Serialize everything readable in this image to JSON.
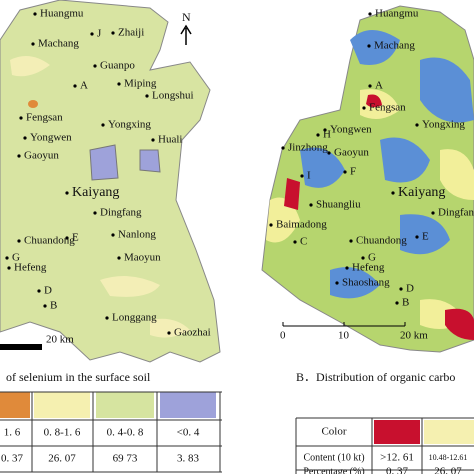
{
  "left_map": {
    "caption": "of selenium in the surface soil",
    "north": "N",
    "scale": "20 km",
    "labels": [
      "Huangmu",
      "J",
      "Zhaiji",
      "Machang",
      "Guanpo",
      "Miping",
      "A",
      "Longshui",
      "Fengsan",
      "Yongwen",
      "Yongxing",
      "Huali",
      "Gaoyun",
      "Kaiyang",
      "Dingfang",
      "Nanlong",
      "Chuandong",
      "E",
      "G",
      "Hefeng",
      "Maoyun",
      "D",
      "B",
      "Longgang",
      "Gaozhai"
    ]
  },
  "left_table": {
    "content": [
      "1. 6",
      "0. 8-1. 6",
      "0. 4-0. 8",
      "<0. 4"
    ],
    "percentage": [
      "0. 37",
      "26. 07",
      "69 73",
      "3. 83"
    ]
  },
  "right_map": {
    "caption": "B．Distribution of organic carbo",
    "scale": [
      "0",
      "10",
      "20 km"
    ],
    "labels": [
      "Huangmu",
      "Machang",
      "A",
      "Fengsan",
      "Yongwen",
      "Yongxing",
      "H",
      "Jinzhong",
      "Gaoyun",
      "F",
      "I",
      "Kaiyang",
      "Shuangliu",
      "Dingfang",
      "Baimadong",
      "C",
      "Chuandong",
      "E",
      "G",
      "Hefeng",
      "Shaoshang",
      "D",
      "B"
    ]
  },
  "right_table": {
    "headers": [
      "Color",
      "Content (10 kt)",
      "Percentage (%)"
    ],
    "content": [
      ">12. 61",
      "10.48-12.61"
    ],
    "percentage": [
      "0. 37",
      "26. 07"
    ]
  }
}
